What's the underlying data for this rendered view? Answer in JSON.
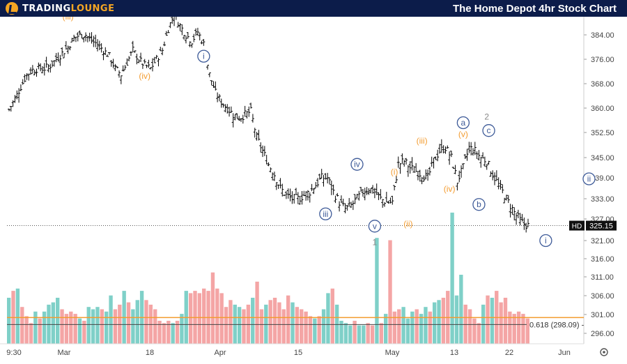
{
  "header": {
    "brand_main": "TRADING",
    "brand_accent": "LOUNGE",
    "title": "The Home Depot 4hr Stock Chart"
  },
  "colors": {
    "header_bg": "#0c1c4a",
    "brand_accent": "#f5a623",
    "bar": "#000000",
    "vol_up": "#7fd0c8",
    "vol_down": "#f4a5a5",
    "wave_orange": "#f39b2e",
    "wave_blue": "#3d5a98",
    "wave_gray": "#888888",
    "fib_line": "#f39b2e"
  },
  "chart_data": {
    "type": "ohlc",
    "symbol": "HD",
    "last_price": "325.15",
    "y_ticks": [
      384.0,
      376.0,
      368.0,
      360.0,
      352.5,
      345.0,
      339.0,
      333.0,
      327.0,
      321.0,
      316.0,
      311.0,
      306.0,
      301.0,
      296.0
    ],
    "y_tick_labels": [
      "384.00",
      "376.00",
      "368.00",
      "360.00",
      "352.50",
      "345.00",
      "339.00",
      "333.00",
      "327.00",
      "321.00",
      "316.00",
      "311.00",
      "306.00",
      "301.00",
      "296.00"
    ],
    "x_labels": [
      "9:30",
      "Mar",
      "18",
      "Apr",
      "15",
      "May",
      "13",
      "22",
      "Jun"
    ],
    "fib_label": "0.618 (298.09)",
    "fib_value": 298.09,
    "close_path": [
      [
        0,
        359.5
      ],
      [
        3,
        363
      ],
      [
        6,
        367
      ],
      [
        9,
        371
      ],
      [
        12,
        372.5
      ],
      [
        15,
        373
      ],
      [
        18,
        373
      ],
      [
        21,
        374
      ],
      [
        24,
        376
      ],
      [
        27,
        378
      ],
      [
        30,
        380
      ],
      [
        33,
        383
      ],
      [
        36,
        384
      ],
      [
        39,
        384
      ],
      [
        42,
        382
      ],
      [
        45,
        381
      ],
      [
        48,
        379
      ],
      [
        51,
        377
      ],
      [
        54,
        373
      ],
      [
        57,
        371
      ],
      [
        60,
        375
      ],
      [
        63,
        379
      ],
      [
        66,
        376
      ],
      [
        69,
        374
      ],
      [
        72,
        373
      ],
      [
        75,
        376
      ],
      [
        78,
        379
      ],
      [
        81,
        386
      ],
      [
        84,
        391
      ],
      [
        87,
        387
      ],
      [
        90,
        384
      ],
      [
        93,
        382
      ],
      [
        96,
        385
      ],
      [
        99,
        381
      ],
      [
        102,
        371
      ],
      [
        105,
        365
      ],
      [
        108,
        362
      ],
      [
        111,
        360
      ],
      [
        114,
        358
      ],
      [
        117,
        357
      ],
      [
        120,
        358
      ],
      [
        123,
        359
      ],
      [
        126,
        351
      ],
      [
        129,
        347
      ],
      [
        132,
        343
      ],
      [
        135,
        340
      ],
      [
        138,
        336
      ],
      [
        141,
        334
      ],
      [
        144,
        333
      ],
      [
        147,
        333
      ],
      [
        150,
        334
      ],
      [
        153,
        335
      ],
      [
        156,
        337
      ],
      [
        159,
        339
      ],
      [
        162,
        339
      ],
      [
        165,
        335
      ],
      [
        168,
        332
      ],
      [
        171,
        330
      ],
      [
        174,
        331
      ],
      [
        177,
        333
      ],
      [
        180,
        335
      ],
      [
        183,
        336
      ],
      [
        186,
        335
      ],
      [
        189,
        333
      ],
      [
        192,
        332
      ],
      [
        195,
        332
      ],
      [
        198,
        343
      ],
      [
        201,
        344
      ],
      [
        204,
        342
      ],
      [
        207,
        341
      ],
      [
        210,
        340
      ],
      [
        213,
        339
      ],
      [
        216,
        344
      ],
      [
        219,
        347
      ],
      [
        222,
        348
      ],
      [
        225,
        345
      ],
      [
        228,
        338
      ],
      [
        231,
        342
      ],
      [
        234,
        348
      ],
      [
        237,
        347
      ],
      [
        240,
        345
      ],
      [
        243,
        344
      ],
      [
        246,
        340
      ],
      [
        249,
        337
      ],
      [
        252,
        334
      ],
      [
        255,
        331
      ],
      [
        258,
        328
      ],
      [
        261,
        326
      ],
      [
        264,
        325.15
      ]
    ],
    "volume": [
      {
        "v": 4.0,
        "up": true
      },
      {
        "v": 4.6,
        "up": false
      },
      {
        "v": 4.8,
        "up": true
      },
      {
        "v": 3.2,
        "up": false
      },
      {
        "v": 2.4,
        "up": false
      },
      {
        "v": 1.8,
        "up": false
      },
      {
        "v": 2.8,
        "up": true
      },
      {
        "v": 2.2,
        "up": false
      },
      {
        "v": 2.8,
        "up": true
      },
      {
        "v": 3.4,
        "up": true
      },
      {
        "v": 3.6,
        "up": true
      },
      {
        "v": 4.0,
        "up": true
      },
      {
        "v": 3.0,
        "up": false
      },
      {
        "v": 2.6,
        "up": false
      },
      {
        "v": 2.8,
        "up": false
      },
      {
        "v": 2.6,
        "up": false
      },
      {
        "v": 2.2,
        "up": true
      },
      {
        "v": 2.0,
        "up": false
      },
      {
        "v": 3.2,
        "up": true
      },
      {
        "v": 3.0,
        "up": true
      },
      {
        "v": 3.2,
        "up": true
      },
      {
        "v": 3.0,
        "up": false
      },
      {
        "v": 2.8,
        "up": true
      },
      {
        "v": 4.2,
        "up": true
      },
      {
        "v": 3.0,
        "up": false
      },
      {
        "v": 3.4,
        "up": false
      },
      {
        "v": 4.6,
        "up": true
      },
      {
        "v": 3.6,
        "up": false
      },
      {
        "v": 3.0,
        "up": true
      },
      {
        "v": 3.8,
        "up": true
      },
      {
        "v": 4.6,
        "up": true
      },
      {
        "v": 3.8,
        "up": false
      },
      {
        "v": 3.4,
        "up": false
      },
      {
        "v": 3.0,
        "up": false
      },
      {
        "v": 2.0,
        "up": false
      },
      {
        "v": 1.8,
        "up": false
      },
      {
        "v": 2.0,
        "up": false
      },
      {
        "v": 1.8,
        "up": true
      },
      {
        "v": 2.0,
        "up": false
      },
      {
        "v": 2.6,
        "up": true
      },
      {
        "v": 4.6,
        "up": true
      },
      {
        "v": 4.4,
        "up": false
      },
      {
        "v": 4.6,
        "up": false
      },
      {
        "v": 4.4,
        "up": false
      },
      {
        "v": 4.8,
        "up": false
      },
      {
        "v": 4.6,
        "up": false
      },
      {
        "v": 6.2,
        "up": false
      },
      {
        "v": 4.8,
        "up": false
      },
      {
        "v": 4.4,
        "up": false
      },
      {
        "v": 3.2,
        "up": false
      },
      {
        "v": 3.8,
        "up": false
      },
      {
        "v": 3.4,
        "up": true
      },
      {
        "v": 3.2,
        "up": true
      },
      {
        "v": 3.0,
        "up": false
      },
      {
        "v": 3.4,
        "up": false
      },
      {
        "v": 4.0,
        "up": true
      },
      {
        "v": 5.4,
        "up": false
      },
      {
        "v": 3.0,
        "up": false
      },
      {
        "v": 3.4,
        "up": true
      },
      {
        "v": 3.8,
        "up": false
      },
      {
        "v": 4.0,
        "up": false
      },
      {
        "v": 3.6,
        "up": false
      },
      {
        "v": 3.0,
        "up": false
      },
      {
        "v": 4.2,
        "up": false
      },
      {
        "v": 3.6,
        "up": true
      },
      {
        "v": 3.2,
        "up": false
      },
      {
        "v": 3.0,
        "up": false
      },
      {
        "v": 2.8,
        "up": false
      },
      {
        "v": 2.4,
        "up": false
      },
      {
        "v": 2.2,
        "up": true
      },
      {
        "v": 2.4,
        "up": false
      },
      {
        "v": 3.0,
        "up": true
      },
      {
        "v": 4.4,
        "up": true
      },
      {
        "v": 4.8,
        "up": false
      },
      {
        "v": 3.4,
        "up": true
      },
      {
        "v": 2.0,
        "up": true
      },
      {
        "v": 1.8,
        "up": true
      },
      {
        "v": 1.6,
        "up": true
      },
      {
        "v": 2.0,
        "up": false
      },
      {
        "v": 1.6,
        "up": true
      },
      {
        "v": 1.6,
        "up": true
      },
      {
        "v": 1.8,
        "up": false
      },
      {
        "v": 1.6,
        "up": false
      },
      {
        "v": 9.2,
        "up": true
      },
      {
        "v": 1.8,
        "up": false
      },
      {
        "v": 2.6,
        "up": true
      },
      {
        "v": 9.0,
        "up": false
      },
      {
        "v": 2.8,
        "up": false
      },
      {
        "v": 3.0,
        "up": false
      },
      {
        "v": 3.2,
        "up": true
      },
      {
        "v": 2.2,
        "up": true
      },
      {
        "v": 2.8,
        "up": true
      },
      {
        "v": 3.0,
        "up": false
      },
      {
        "v": 2.6,
        "up": true
      },
      {
        "v": 3.2,
        "up": true
      },
      {
        "v": 2.8,
        "up": false
      },
      {
        "v": 3.6,
        "up": true
      },
      {
        "v": 3.8,
        "up": true
      },
      {
        "v": 4.0,
        "up": false
      },
      {
        "v": 4.6,
        "up": false
      },
      {
        "v": 11.4,
        "up": true
      },
      {
        "v": 4.2,
        "up": true
      },
      {
        "v": 6.0,
        "up": true
      },
      {
        "v": 3.4,
        "up": false
      },
      {
        "v": 3.0,
        "up": false
      },
      {
        "v": 2.2,
        "up": false
      },
      {
        "v": 1.8,
        "up": false
      },
      {
        "v": 3.4,
        "up": true
      },
      {
        "v": 4.2,
        "up": false
      },
      {
        "v": 4.0,
        "up": true
      },
      {
        "v": 4.6,
        "up": false
      },
      {
        "v": 3.6,
        "up": false
      },
      {
        "v": 4.0,
        "up": false
      },
      {
        "v": 2.8,
        "up": false
      },
      {
        "v": 2.6,
        "up": false
      },
      {
        "v": 2.8,
        "up": false
      },
      {
        "v": 2.6,
        "up": false
      },
      {
        "v": 2.2,
        "up": false
      }
    ],
    "wave_labels": [
      {
        "text": "(iii)",
        "t": 30,
        "y": 390,
        "style": "orange"
      },
      {
        "text": "(iv)",
        "t": 69,
        "y": 370.5,
        "style": "orange"
      },
      {
        "text": "i",
        "t": 99,
        "y": 377,
        "style": "circle"
      },
      {
        "text": "iii",
        "t": 161,
        "y": 328.5,
        "style": "circle"
      },
      {
        "text": "iv",
        "t": 177,
        "y": 343,
        "style": "circle"
      },
      {
        "text": "v",
        "t": 186,
        "y": 325,
        "style": "circle"
      },
      {
        "text": "1",
        "t": 186,
        "y": 320.5,
        "style": "gray"
      },
      {
        "text": "(i)",
        "t": 196,
        "y": 340.8,
        "style": "orange"
      },
      {
        "text": "(ii)",
        "t": 203,
        "y": 325.6,
        "style": "orange"
      },
      {
        "text": "(iii)",
        "t": 210,
        "y": 350,
        "style": "orange"
      },
      {
        "text": "(iv)",
        "t": 224,
        "y": 335.8,
        "style": "orange"
      },
      {
        "text": "(v)",
        "t": 231,
        "y": 352,
        "style": "orange"
      },
      {
        "text": "a",
        "t": 231,
        "y": 355.5,
        "style": "circle"
      },
      {
        "text": "2",
        "t": 243,
        "y": 357.3,
        "style": "gray"
      },
      {
        "text": "b",
        "t": 239,
        "y": 331.3,
        "style": "circle"
      },
      {
        "text": "c",
        "t": 244,
        "y": 353.1,
        "style": "circle"
      },
      {
        "text": "ii",
        "t": 295,
        "y": 338.7,
        "style": "circle"
      },
      {
        "text": "i",
        "t": 273,
        "y": 321,
        "style": "circle"
      }
    ]
  },
  "footer": {
    "settings_icon": "gear-icon"
  }
}
